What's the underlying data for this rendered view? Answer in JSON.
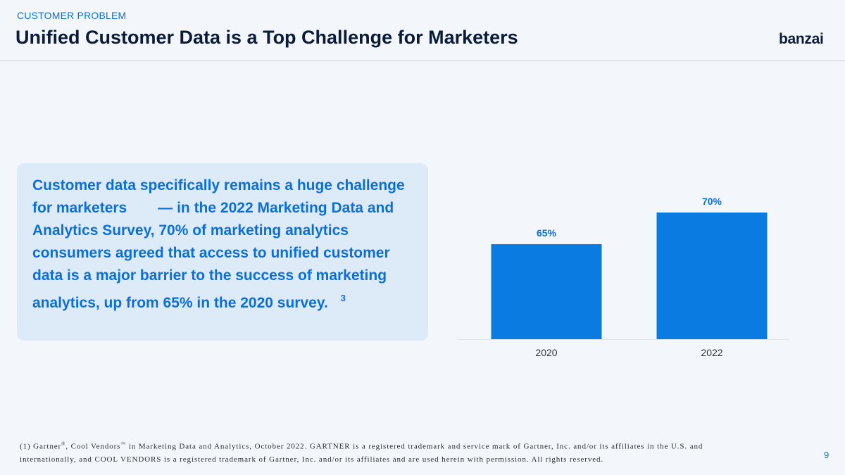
{
  "header": {
    "eyebrow": "CUSTOMER PROBLEM",
    "title": "Unified Customer Data is a Top Challenge for Marketers",
    "logo": "banzai"
  },
  "callout": {
    "part1": "Customer data specifically remains a huge challenge for marketers",
    "part2": "— in the 2022 Marketing Data and Analytics Survey, 70% of marketing analytics consumers agreed that access to unified customer data is a major barrier to the success of marketing analytics, up from 65% in the 2020 survey.",
    "ref": "3"
  },
  "chart_data": {
    "type": "bar",
    "categories": [
      "2020",
      "2022"
    ],
    "values": [
      65,
      70
    ],
    "data_labels": [
      "65%",
      "70%"
    ],
    "title": "",
    "xlabel": "",
    "ylabel": "",
    "ylim": [
      50,
      72
    ],
    "grid": false,
    "colors": {
      "bar": "#0a7be0",
      "label": "#0a6fd8",
      "axis": "#e1e4e8"
    }
  },
  "footnote": {
    "pre": "(1) Gartner",
    "reg": "®",
    "mid": ", Cool Vendors",
    "tm": "™",
    "post": " in Marketing Data and Analytics, October 2022. GARTNER is a registered trademark and service mark of Gartner, Inc. and/or its affiliates in the U.S. and internationally, and COOL VENDORS is a registered trademark of Gartner, Inc. and/or its affiliates and are used herein with permission. All rights reserved."
  },
  "page_number": "9"
}
